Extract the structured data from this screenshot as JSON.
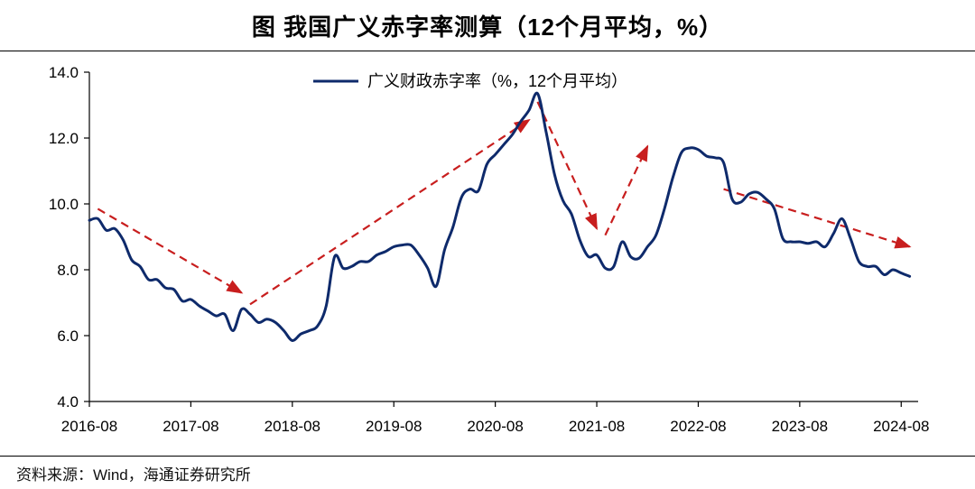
{
  "chart_data": {
    "type": "line",
    "title": "图 我国广义赤字率测算（12个月平均，%）",
    "source": "资料来源：Wind，海通证券研究所",
    "ylim": [
      4.0,
      14.0
    ],
    "yticks": [
      "4.0",
      "6.0",
      "8.0",
      "10.0",
      "12.0",
      "14.0"
    ],
    "xticks": [
      "2016-08",
      "2017-08",
      "2018-08",
      "2019-08",
      "2020-08",
      "2021-08",
      "2022-08",
      "2023-08",
      "2024-08"
    ],
    "x_start": "2016-08",
    "x_end": "2024-10",
    "legend": "top-center",
    "grid": false,
    "colors": {
      "series": "#0e2a6b",
      "arrow": "#c81e1e"
    },
    "series": [
      {
        "name": "广义财政赤字率（%，12个月平均）",
        "points": [
          [
            "2016-08",
            9.5
          ],
          [
            "2016-09",
            9.55
          ],
          [
            "2016-10",
            9.2
          ],
          [
            "2016-11",
            9.25
          ],
          [
            "2016-12",
            8.9
          ],
          [
            "2017-01",
            8.3
          ],
          [
            "2017-02",
            8.1
          ],
          [
            "2017-03",
            7.7
          ],
          [
            "2017-04",
            7.7
          ],
          [
            "2017-05",
            7.45
          ],
          [
            "2017-06",
            7.4
          ],
          [
            "2017-07",
            7.05
          ],
          [
            "2017-08",
            7.1
          ],
          [
            "2017-09",
            6.9
          ],
          [
            "2017-10",
            6.75
          ],
          [
            "2017-11",
            6.6
          ],
          [
            "2017-12",
            6.65
          ],
          [
            "2018-01",
            6.15
          ],
          [
            "2018-02",
            6.8
          ],
          [
            "2018-03",
            6.65
          ],
          [
            "2018-04",
            6.4
          ],
          [
            "2018-05",
            6.5
          ],
          [
            "2018-06",
            6.4
          ],
          [
            "2018-07",
            6.15
          ],
          [
            "2018-08",
            5.85
          ],
          [
            "2018-09",
            6.05
          ],
          [
            "2018-10",
            6.15
          ],
          [
            "2018-11",
            6.3
          ],
          [
            "2018-12",
            6.9
          ],
          [
            "2019-01",
            8.4
          ],
          [
            "2019-02",
            8.05
          ],
          [
            "2019-03",
            8.1
          ],
          [
            "2019-04",
            8.25
          ],
          [
            "2019-05",
            8.25
          ],
          [
            "2019-06",
            8.45
          ],
          [
            "2019-07",
            8.55
          ],
          [
            "2019-08",
            8.7
          ],
          [
            "2019-09",
            8.75
          ],
          [
            "2019-10",
            8.75
          ],
          [
            "2019-11",
            8.45
          ],
          [
            "2019-12",
            8.05
          ],
          [
            "2020-01",
            7.5
          ],
          [
            "2020-02",
            8.6
          ],
          [
            "2020-03",
            9.3
          ],
          [
            "2020-04",
            10.2
          ],
          [
            "2020-05",
            10.45
          ],
          [
            "2020-06",
            10.4
          ],
          [
            "2020-07",
            11.2
          ],
          [
            "2020-08",
            11.5
          ],
          [
            "2020-09",
            11.8
          ],
          [
            "2020-10",
            12.1
          ],
          [
            "2020-11",
            12.5
          ],
          [
            "2020-12",
            12.85
          ],
          [
            "2021-01",
            13.35
          ],
          [
            "2021-02",
            12.2
          ],
          [
            "2021-03",
            10.9
          ],
          [
            "2021-04",
            10.1
          ],
          [
            "2021-05",
            9.7
          ],
          [
            "2021-06",
            8.9
          ],
          [
            "2021-07",
            8.4
          ],
          [
            "2021-08",
            8.45
          ],
          [
            "2021-09",
            8.05
          ],
          [
            "2021-10",
            8.1
          ],
          [
            "2021-11",
            8.85
          ],
          [
            "2021-12",
            8.4
          ],
          [
            "2022-01",
            8.35
          ],
          [
            "2022-02",
            8.7
          ],
          [
            "2022-03",
            9.05
          ],
          [
            "2022-04",
            9.85
          ],
          [
            "2022-05",
            10.8
          ],
          [
            "2022-06",
            11.55
          ],
          [
            "2022-07",
            11.7
          ],
          [
            "2022-08",
            11.65
          ],
          [
            "2022-09",
            11.45
          ],
          [
            "2022-10",
            11.4
          ],
          [
            "2022-11",
            11.25
          ],
          [
            "2022-12",
            10.15
          ],
          [
            "2023-01",
            10.05
          ],
          [
            "2023-02",
            10.3
          ],
          [
            "2023-03",
            10.35
          ],
          [
            "2023-04",
            10.15
          ],
          [
            "2023-05",
            9.85
          ],
          [
            "2023-06",
            8.95
          ],
          [
            "2023-07",
            8.85
          ],
          [
            "2023-08",
            8.85
          ],
          [
            "2023-09",
            8.8
          ],
          [
            "2023-10",
            8.85
          ],
          [
            "2023-11",
            8.7
          ],
          [
            "2023-12",
            9.1
          ],
          [
            "2024-01",
            9.55
          ],
          [
            "2024-02",
            8.95
          ],
          [
            "2024-03",
            8.25
          ],
          [
            "2024-04",
            8.1
          ],
          [
            "2024-05",
            8.1
          ],
          [
            "2024-06",
            7.85
          ],
          [
            "2024-07",
            8.0
          ],
          [
            "2024-08",
            7.9
          ],
          [
            "2024-09",
            7.8
          ]
        ]
      }
    ],
    "annotations": [
      {
        "type": "dashed-arrow",
        "from": [
          "2016-09",
          9.85
        ],
        "to": [
          "2018-02",
          7.3
        ]
      },
      {
        "type": "dashed-arrow",
        "from": [
          "2018-03",
          6.95
        ],
        "to": [
          "2020-12",
          12.55
        ]
      },
      {
        "type": "dashed-arrow",
        "from": [
          "2021-01",
          13.1
        ],
        "to": [
          "2021-08",
          9.25
        ]
      },
      {
        "type": "dashed-arrow",
        "from": [
          "2021-09",
          9.05
        ],
        "to": [
          "2022-02",
          11.75
        ]
      },
      {
        "type": "dashed-arrow",
        "from": [
          "2022-11",
          10.45
        ],
        "to": [
          "2024-09",
          8.7
        ]
      }
    ]
  }
}
